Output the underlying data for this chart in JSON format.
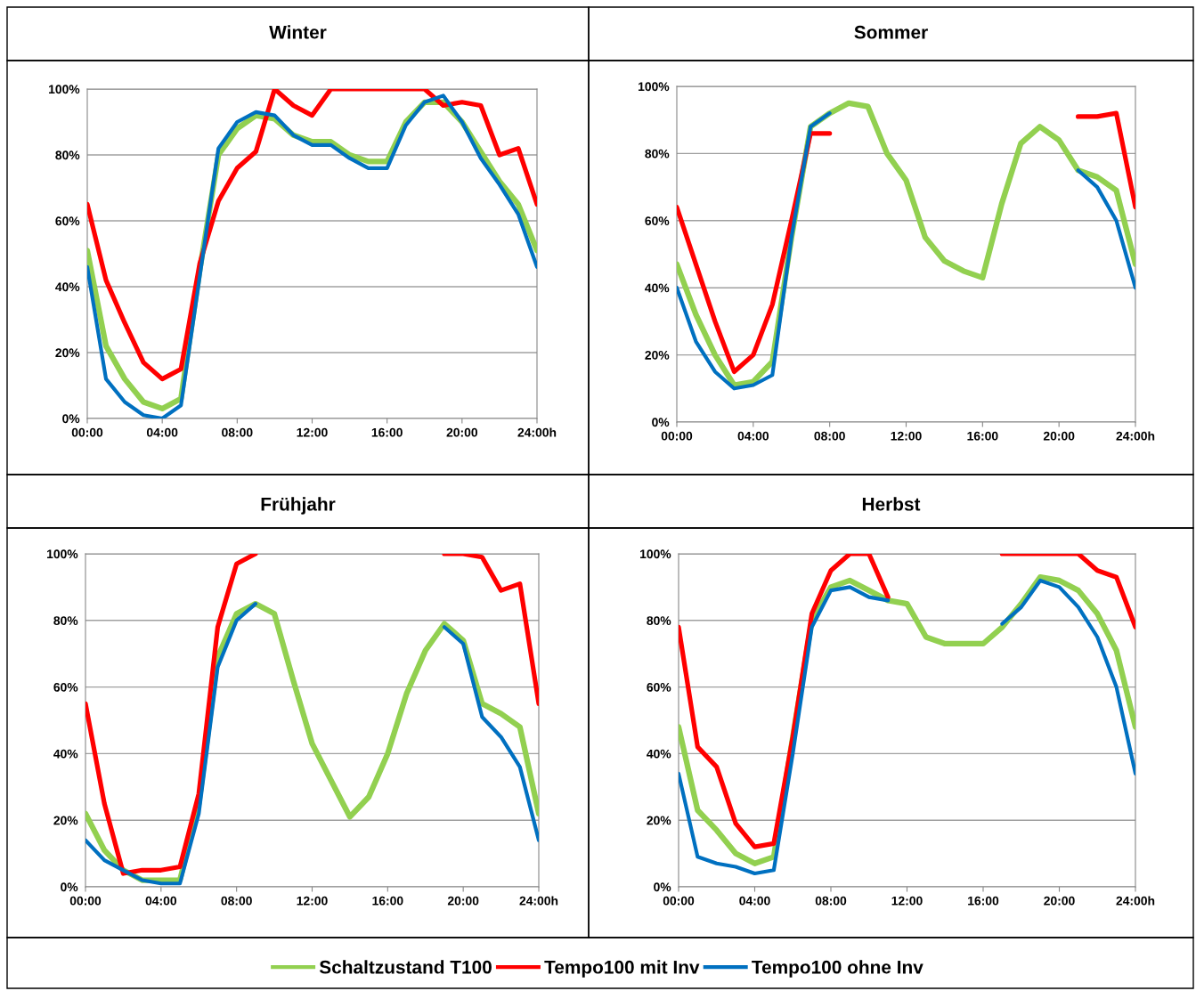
{
  "chart_data": [
    {
      "type": "line",
      "title": "Winter",
      "x": [
        0,
        1,
        2,
        3,
        4,
        5,
        6,
        7,
        8,
        9,
        10,
        11,
        12,
        13,
        14,
        15,
        16,
        17,
        18,
        19,
        20,
        21,
        22,
        23,
        24
      ],
      "xlim": [
        0,
        24
      ],
      "xticks": [
        {
          "value": 0,
          "label": "00:00"
        },
        {
          "value": 4,
          "label": "04:00"
        },
        {
          "value": 8,
          "label": "08:00"
        },
        {
          "value": 12,
          "label": "12:00"
        },
        {
          "value": 16,
          "label": "16:00"
        },
        {
          "value": 20,
          "label": "20:00"
        },
        {
          "value": 24,
          "label": "24:00h"
        }
      ],
      "ylim": [
        0,
        100
      ],
      "yticks": [
        {
          "value": 0,
          "label": "0%"
        },
        {
          "value": 20,
          "label": "20%"
        },
        {
          "value": 40,
          "label": "40%"
        },
        {
          "value": 60,
          "label": "60%"
        },
        {
          "value": 80,
          "label": "80%"
        },
        {
          "value": 100,
          "label": "100%"
        }
      ],
      "grid": "y",
      "legend": "bottom",
      "line_style": "solid",
      "marker": "none",
      "series": [
        {
          "name": "Schaltzustand T100",
          "color": "#92d050",
          "values": [
            51,
            22,
            12,
            5,
            3,
            6,
            45,
            80,
            88,
            92,
            91,
            86,
            84,
            84,
            80,
            78,
            78,
            90,
            96,
            96,
            90,
            81,
            72,
            65,
            51
          ]
        },
        {
          "name": "Tempo100 mit Inv",
          "color": "#ff0000",
          "values": [
            65,
            42,
            29,
            17,
            12,
            15,
            47,
            66,
            76,
            81,
            100,
            95,
            92,
            100,
            100,
            100,
            100,
            100,
            100,
            95,
            96,
            95,
            80,
            82,
            65
          ]
        },
        {
          "name": "Tempo100 ohne Inv",
          "color": "#0070c0",
          "values": [
            46,
            12,
            5,
            1,
            0,
            4,
            43,
            82,
            90,
            93,
            92,
            86,
            83,
            83,
            79,
            76,
            76,
            89,
            96,
            98,
            90,
            79,
            71,
            62,
            46
          ]
        }
      ]
    },
    {
      "type": "line",
      "title": "Sommer",
      "x": [
        0,
        1,
        2,
        3,
        4,
        5,
        6,
        7,
        8,
        9,
        10,
        11,
        12,
        13,
        14,
        15,
        16,
        17,
        18,
        19,
        20,
        21,
        22,
        23,
        24
      ],
      "xlim": [
        0,
        24
      ],
      "xticks": [
        {
          "value": 0,
          "label": "00:00"
        },
        {
          "value": 4,
          "label": "04:00"
        },
        {
          "value": 8,
          "label": "08:00"
        },
        {
          "value": 12,
          "label": "12:00"
        },
        {
          "value": 16,
          "label": "16:00"
        },
        {
          "value": 20,
          "label": "20:00"
        },
        {
          "value": 24,
          "label": "24:00h"
        }
      ],
      "ylim": [
        0,
        100
      ],
      "yticks": [
        {
          "value": 0,
          "label": "0%"
        },
        {
          "value": 20,
          "label": "20%"
        },
        {
          "value": 40,
          "label": "40%"
        },
        {
          "value": 60,
          "label": "60%"
        },
        {
          "value": 80,
          "label": "80%"
        },
        {
          "value": 100,
          "label": "100%"
        }
      ],
      "grid": "y",
      "line_style": "solid",
      "marker": "none",
      "series": [
        {
          "color": "#92d050",
          "values": [
            47,
            32,
            20,
            11,
            12,
            18,
            55,
            88,
            92,
            95,
            94,
            80,
            72,
            55,
            48,
            45,
            43,
            65,
            83,
            88,
            84,
            75,
            73,
            69,
            47
          ]
        },
        {
          "color": "#ff0000",
          "values": [
            64,
            47,
            30,
            15,
            20,
            35,
            60,
            86,
            86,
            null,
            null,
            null,
            null,
            null,
            null,
            null,
            null,
            null,
            null,
            null,
            null,
            91,
            91,
            92,
            64
          ]
        },
        {
          "color": "#0070c0",
          "values": [
            40,
            24,
            15,
            10,
            11,
            14,
            55,
            88,
            92,
            null,
            null,
            null,
            null,
            null,
            null,
            null,
            null,
            null,
            null,
            null,
            null,
            75,
            70,
            60,
            40
          ]
        }
      ]
    },
    {
      "type": "line",
      "title": "Frühjahr",
      "x": [
        0,
        1,
        2,
        3,
        4,
        5,
        6,
        7,
        8,
        9,
        10,
        11,
        12,
        13,
        14,
        15,
        16,
        17,
        18,
        19,
        20,
        21,
        22,
        23,
        24
      ],
      "xlim": [
        0,
        24
      ],
      "xticks": [
        {
          "value": 0,
          "label": "00:00"
        },
        {
          "value": 4,
          "label": "04:00"
        },
        {
          "value": 8,
          "label": "08:00"
        },
        {
          "value": 12,
          "label": "12:00"
        },
        {
          "value": 16,
          "label": "16:00"
        },
        {
          "value": 20,
          "label": "20:00"
        },
        {
          "value": 24,
          "label": "24:00h"
        }
      ],
      "ylim": [
        0,
        100
      ],
      "yticks": [
        {
          "value": 0,
          "label": "0%"
        },
        {
          "value": 20,
          "label": "20%"
        },
        {
          "value": 40,
          "label": "40%"
        },
        {
          "value": 60,
          "label": "60%"
        },
        {
          "value": 80,
          "label": "80%"
        },
        {
          "value": 100,
          "label": "100%"
        }
      ],
      "grid": "y",
      "line_style": "solid",
      "marker": "none",
      "series": [
        {
          "color": "#92d050",
          "values": [
            22,
            11,
            5,
            2,
            2,
            2,
            25,
            69,
            82,
            85,
            82,
            62,
            43,
            32,
            21,
            27,
            40,
            58,
            71,
            79,
            74,
            55,
            52,
            48,
            22
          ]
        },
        {
          "color": "#ff0000",
          "values": [
            55,
            25,
            4,
            5,
            5,
            6,
            28,
            78,
            97,
            100,
            null,
            null,
            null,
            null,
            null,
            null,
            null,
            null,
            null,
            100,
            100,
            99,
            89,
            91,
            55
          ]
        },
        {
          "color": "#0070c0",
          "values": [
            14,
            8,
            5,
            2,
            1,
            1,
            22,
            66,
            80,
            85,
            null,
            null,
            null,
            null,
            null,
            null,
            null,
            null,
            null,
            78,
            73,
            51,
            45,
            36,
            14
          ]
        }
      ]
    },
    {
      "type": "line",
      "title": "Herbst",
      "x": [
        0,
        1,
        2,
        3,
        4,
        5,
        6,
        7,
        8,
        9,
        10,
        11,
        12,
        13,
        14,
        15,
        16,
        17,
        18,
        19,
        20,
        21,
        22,
        23,
        24
      ],
      "xlim": [
        0,
        24
      ],
      "xticks": [
        {
          "value": 0,
          "label": "00:00"
        },
        {
          "value": 4,
          "label": "04:00"
        },
        {
          "value": 8,
          "label": "08:00"
        },
        {
          "value": 12,
          "label": "12:00"
        },
        {
          "value": 16,
          "label": "16:00"
        },
        {
          "value": 20,
          "label": "20:00"
        },
        {
          "value": 24,
          "label": "24:00h"
        }
      ],
      "ylim": [
        0,
        100
      ],
      "yticks": [
        {
          "value": 0,
          "label": "0%"
        },
        {
          "value": 20,
          "label": "20%"
        },
        {
          "value": 40,
          "label": "40%"
        },
        {
          "value": 60,
          "label": "60%"
        },
        {
          "value": 80,
          "label": "80%"
        },
        {
          "value": 100,
          "label": "100%"
        }
      ],
      "grid": "y",
      "line_style": "solid",
      "marker": "none",
      "series": [
        {
          "color": "#92d050",
          "values": [
            48,
            23,
            17,
            10,
            7,
            9,
            45,
            80,
            90,
            92,
            89,
            86,
            85,
            75,
            73,
            73,
            73,
            78,
            85,
            93,
            92,
            89,
            82,
            71,
            48
          ]
        },
        {
          "color": "#ff0000",
          "values": [
            78,
            42,
            36,
            19,
            12,
            13,
            45,
            82,
            95,
            100,
            100,
            87,
            null,
            null,
            null,
            null,
            null,
            100,
            100,
            100,
            100,
            100,
            95,
            93,
            78
          ]
        },
        {
          "color": "#0070c0",
          "values": [
            34,
            9,
            7,
            6,
            4,
            5,
            40,
            78,
            89,
            90,
            87,
            86,
            null,
            null,
            null,
            null,
            null,
            79,
            84,
            92,
            90,
            84,
            75,
            60,
            34
          ]
        }
      ]
    }
  ]
}
